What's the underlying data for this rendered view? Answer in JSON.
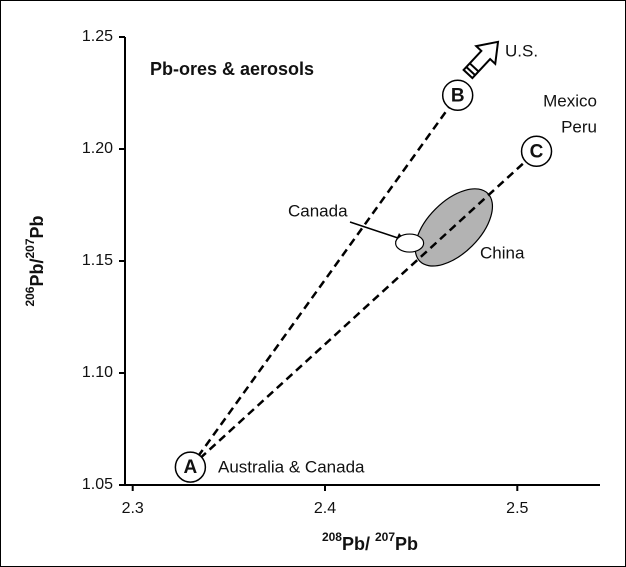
{
  "chart_data": {
    "type": "scatter",
    "title": "Pb-ores & aerosols",
    "x_label": [
      "208",
      "Pb/ ",
      "207",
      "Pb"
    ],
    "y_label": [
      "206",
      "Pb/",
      "207",
      "Pb"
    ],
    "xlim": [
      2.296,
      2.543
    ],
    "ylim": [
      1.05,
      1.25
    ],
    "xticks": [
      2.3,
      2.4,
      2.5
    ],
    "yticks": [
      1.05,
      {
        "value": 1.1,
        "label": "1.10"
      },
      1.15,
      {
        "value": 1.2,
        "label": "1.20"
      },
      1.25
    ],
    "points": [
      {
        "label": "A",
        "x": 2.33,
        "y": 1.058
      },
      {
        "label": "B",
        "x": 2.469,
        "y": 1.224
      },
      {
        "label": "C",
        "x": 2.51,
        "y": 1.199
      }
    ],
    "regions": [
      {
        "name": "Canada",
        "x": 2.444,
        "y": 1.158,
        "color": "#ffffff"
      },
      {
        "name": "China",
        "x": 2.467,
        "y": 1.165,
        "color": "#b3b3b3"
      }
    ],
    "annotations": [
      "U.S.",
      "Mexico",
      "Peru",
      "Australia & Canada"
    ]
  }
}
